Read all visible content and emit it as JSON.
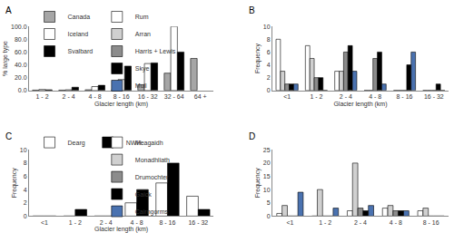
{
  "chart_data": [
    {
      "type": "bar",
      "title": "A",
      "categories": [
        "1 - 2",
        "2 - 4",
        "4 - 8",
        "8 - 16",
        "16 - 32",
        "32 - 64",
        "64 +"
      ],
      "series": [
        {
          "name": "Canada",
          "color": "#a6a6a6",
          "values": [
            0.5,
            0.5,
            1,
            1,
            9,
            27,
            50
          ]
        },
        {
          "name": "Iceland",
          "color": "#ffffff",
          "values": [
            1.5,
            1,
            6,
            17,
            42,
            100,
            null
          ]
        },
        {
          "name": "Svalbard",
          "color": "#000000",
          "values": [
            1,
            5,
            8,
            38,
            43,
            60,
            null
          ]
        }
      ],
      "x_label": "Glacier length (km)",
      "y_label": "% large type",
      "ylim": [
        0,
        100
      ],
      "yticks": [
        {
          "value": 0,
          "label": "0.0"
        },
        {
          "value": 20,
          "label": "20.0"
        },
        {
          "value": 40,
          "label": "40.0"
        },
        {
          "value": 60,
          "label": "60.0"
        },
        {
          "value": 80,
          "label": "80.0"
        },
        {
          "value": 100,
          "label": "100.0"
        }
      ],
      "grid": false,
      "legend": "top"
    },
    {
      "type": "bar",
      "title": "B",
      "categories": [
        "<1",
        "1 - 2",
        "2 - 4",
        "4 - 8",
        "8 - 16",
        "16 - 32"
      ],
      "series": [
        {
          "name": "Rum",
          "color": "#ffffff",
          "values": [
            8,
            7,
            3,
            0,
            0,
            0
          ]
        },
        {
          "name": "Arran",
          "color": "#d0d0d0",
          "values": [
            3,
            5,
            3,
            0,
            0,
            0
          ]
        },
        {
          "name": "Harris + Lewis",
          "color": "#8c8c8c",
          "values": [
            1,
            2,
            6,
            5,
            0,
            0
          ]
        },
        {
          "name": "Skye",
          "color": "#000000",
          "values": [
            1,
            2,
            7,
            6,
            4,
            1
          ]
        },
        {
          "name": "Mull",
          "color": "#4a72b0",
          "values": [
            1,
            0,
            3,
            1,
            6,
            0
          ]
        }
      ],
      "x_label": "Glacier length (km)",
      "y_label": "Frequency",
      "ylim": [
        0,
        10
      ],
      "yticks": [
        0,
        2,
        4,
        6,
        8,
        10
      ],
      "grid": false,
      "legend": "top"
    },
    {
      "type": "bar",
      "title": "C",
      "categories": [
        "<1",
        "1 - 2",
        "2 - 4",
        "4 - 8",
        "8 - 16",
        "16 - 32"
      ],
      "series": [
        {
          "name": "Dearg",
          "color": "#ffffff",
          "values": [
            0,
            0,
            0,
            2,
            5,
            3
          ]
        },
        {
          "name": "NWH",
          "color": "#000000",
          "values": [
            0,
            1,
            0,
            4,
            8,
            1
          ]
        }
      ],
      "x_label": "Glacier length (km)",
      "y_label": "Frequency",
      "ylim": [
        0,
        10
      ],
      "yticks": [
        0,
        2,
        4,
        6,
        8,
        10
      ],
      "grid": false,
      "legend": "top"
    },
    {
      "type": "bar",
      "title": "D",
      "categories": [
        "<1",
        "1 - 2",
        "2 - 4",
        "4 - 8",
        "8 - 16"
      ],
      "series": [
        {
          "name": "Meagaidh",
          "color": "#ffffff",
          "values": [
            1,
            0,
            2,
            3,
            2
          ]
        },
        {
          "name": "Monadhliath",
          "color": "#d0d0d0",
          "values": [
            4,
            10,
            20,
            4,
            3
          ]
        },
        {
          "name": "Drumochter",
          "color": "#8c8c8c",
          "values": [
            0,
            0,
            3,
            2,
            0
          ]
        },
        {
          "name": "Gaick",
          "color": "#000000",
          "values": [
            0,
            0,
            2,
            2,
            0
          ]
        },
        {
          "name": "Cairngorms",
          "color": "#4a72b0",
          "values": [
            9,
            3,
            4,
            2,
            0
          ]
        }
      ],
      "y_label": "Frequency",
      "ylim": [
        0,
        25
      ],
      "yticks": [
        0,
        5,
        10,
        15,
        20,
        25
      ],
      "grid": false,
      "legend": "top"
    }
  ]
}
